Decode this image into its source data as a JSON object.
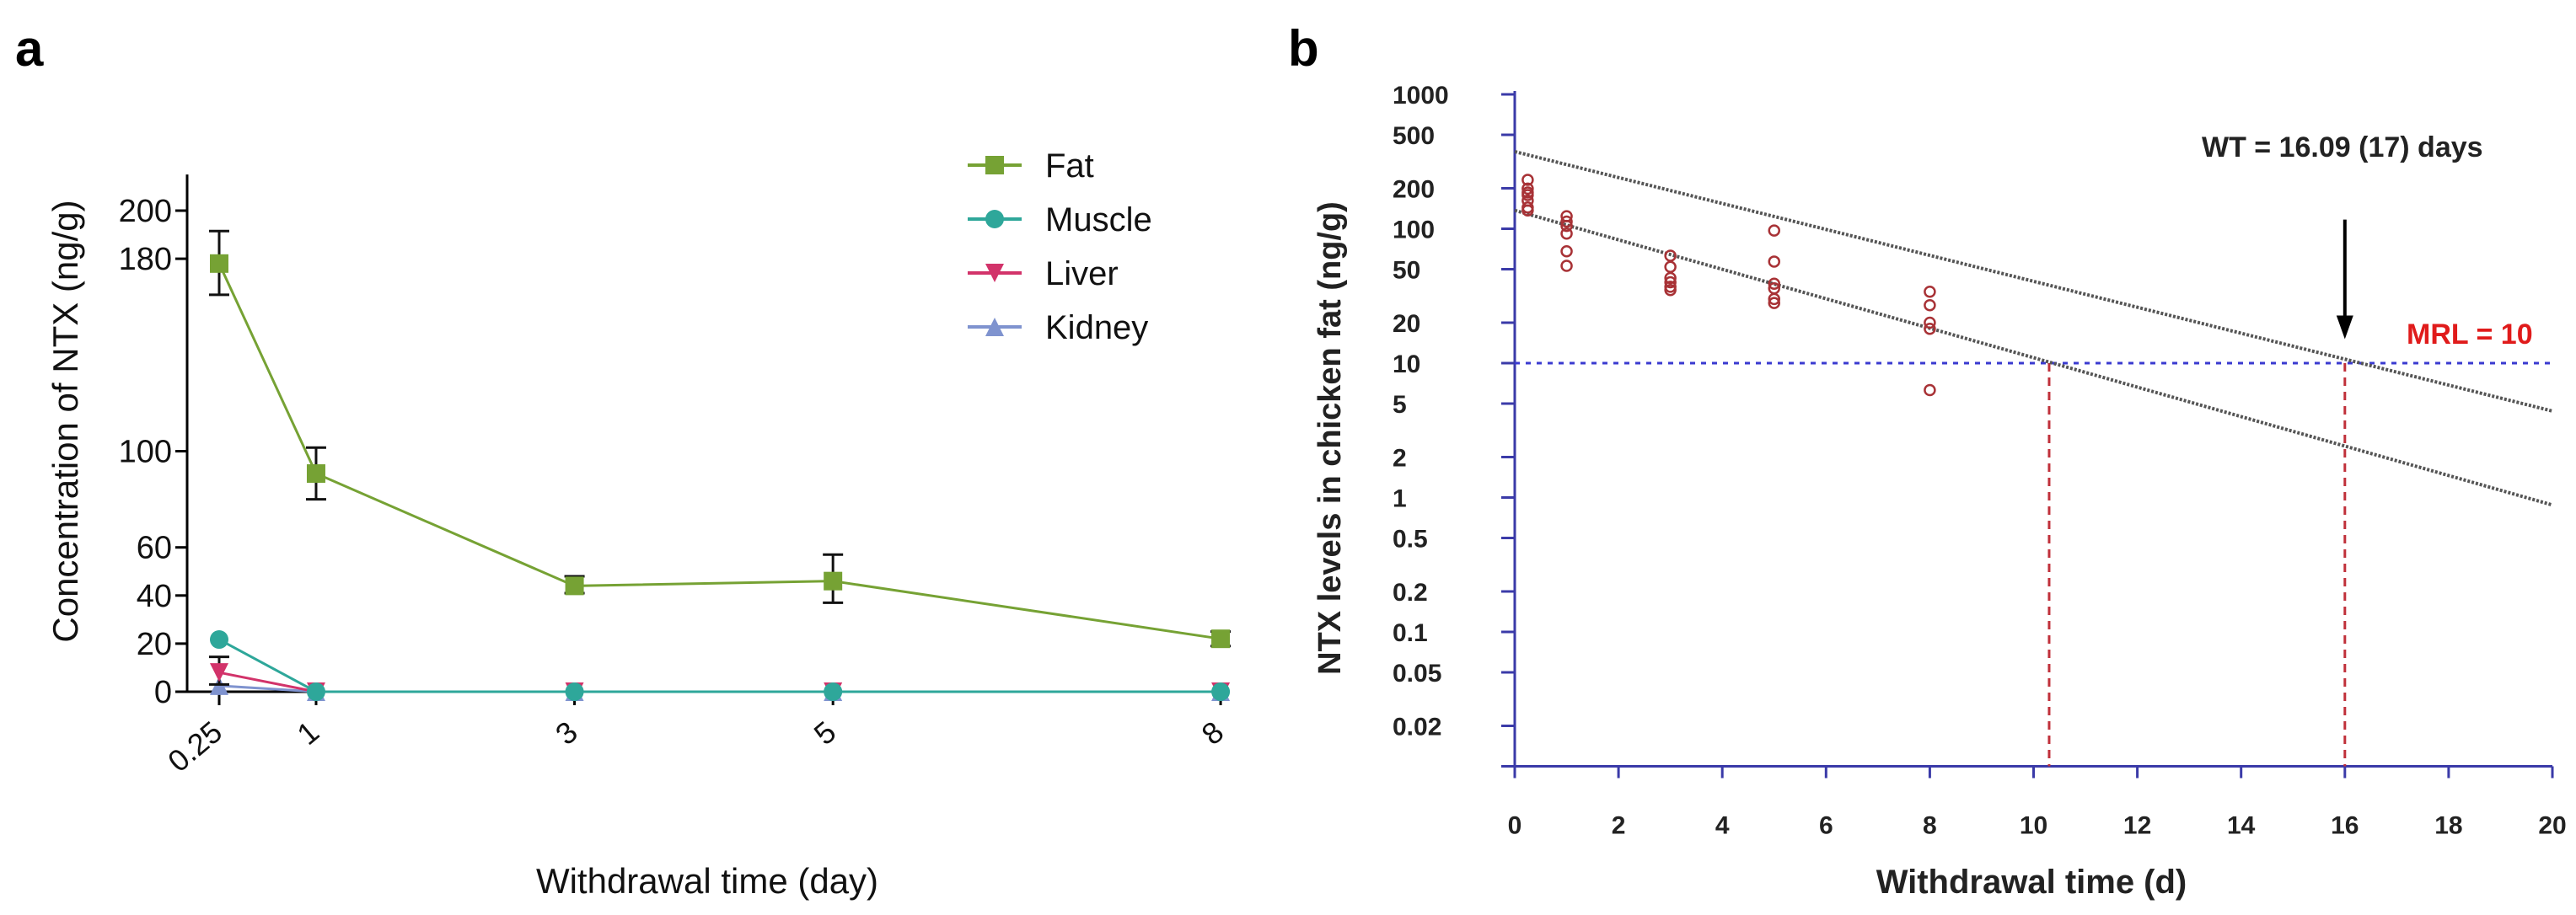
{
  "panels": {
    "a": "a",
    "b": "b"
  },
  "chart_data": [
    {
      "type": "line",
      "panel": "a",
      "xlabel": "Withdrawal time (day)",
      "ylabel": "Concentration of NTX (ng/g)",
      "x": [
        0.25,
        1,
        3,
        5,
        8
      ],
      "x_tick_labels": [
        "0.25",
        "1",
        "3",
        "5",
        "8"
      ],
      "y_ticks": [
        0,
        20,
        40,
        60,
        100,
        180,
        200
      ],
      "y_tick_labels": [
        "0",
        "20",
        "40",
        "60",
        "100",
        "180",
        "200"
      ],
      "ylim": [
        0,
        215
      ],
      "legend_position": "top-right",
      "series": [
        {
          "name": "Fat",
          "marker": "square",
          "color": "#76a234",
          "values": [
            178,
            90.7,
            44,
            46,
            22
          ],
          "err_low": [
            165,
            80,
            41,
            37,
            19
          ],
          "err_high": [
            191.5,
            101.5,
            48,
            57,
            25
          ]
        },
        {
          "name": "Muscle",
          "marker": "circle",
          "color": "#2ea79a",
          "values": [
            21.7,
            0,
            0,
            0,
            0
          ]
        },
        {
          "name": "Liver",
          "marker": "triangle-down",
          "color": "#d2336a",
          "values": [
            8,
            0,
            0,
            0,
            0
          ],
          "err_low": [
            3,
            0,
            0,
            0,
            0
          ],
          "err_high": [
            14.5,
            0,
            0,
            0,
            0
          ]
        },
        {
          "name": "Kidney",
          "marker": "triangle-up",
          "color": "#7f93cf",
          "values": [
            2.5,
            0,
            0,
            0,
            0
          ]
        }
      ]
    },
    {
      "type": "scatter",
      "panel": "b",
      "xlabel": "Withdrawal time (d)",
      "ylabel": "NTX levels in chicken fat (ng/g)",
      "yscale": "log",
      "xlim": [
        0,
        20
      ],
      "ylim": [
        0.01,
        1000
      ],
      "x_ticks": [
        0,
        2,
        4,
        6,
        8,
        10,
        12,
        14,
        16,
        18,
        20
      ],
      "x_tick_labels": [
        "0",
        "2",
        "4",
        "6",
        "8",
        "10",
        "12",
        "14",
        "16",
        "18",
        "20"
      ],
      "y_ticks": [
        1000,
        500,
        200,
        100,
        50,
        20,
        10,
        5,
        2,
        1,
        0.5,
        0.2,
        0.1,
        0.05,
        0.02
      ],
      "y_tick_labels": [
        "1000",
        "500",
        "200",
        "100",
        "50",
        "20",
        "10",
        "5",
        "2",
        "1",
        "0.5",
        "0.2",
        "0.1",
        "0.05",
        "0.02"
      ],
      "points": [
        {
          "x": 0.25,
          "y": [
            231,
            199,
            186,
            178,
            162,
            144,
            137
          ]
        },
        {
          "x": 1,
          "y": [
            124,
            113,
            105,
            92,
            68,
            53
          ]
        },
        {
          "x": 3,
          "y": [
            63,
            52,
            43,
            40,
            37,
            35
          ]
        },
        {
          "x": 5,
          "y": [
            97,
            57,
            39,
            36,
            30,
            28
          ]
        },
        {
          "x": 8,
          "y": [
            34,
            27,
            20,
            18,
            6.3
          ]
        }
      ],
      "point_color": "#a83236",
      "regression_line": {
        "x": [
          0,
          20
        ],
        "y": [
          137,
          0.88
        ]
      },
      "upper_tolerance_line": {
        "x": [
          0,
          20
        ],
        "y": [
          375,
          4.4
        ]
      },
      "mrl": {
        "value": 10,
        "label": "MRL = 10",
        "color": "#e01b1b"
      },
      "wt": {
        "value": 16.09,
        "label": "WT = 16.09 (17) days"
      },
      "crossings_x": [
        10.3,
        16
      ],
      "arrow": {
        "x": 16,
        "y_from": 117,
        "y_to": 16
      },
      "axis_color": "#3a3aa8"
    }
  ]
}
